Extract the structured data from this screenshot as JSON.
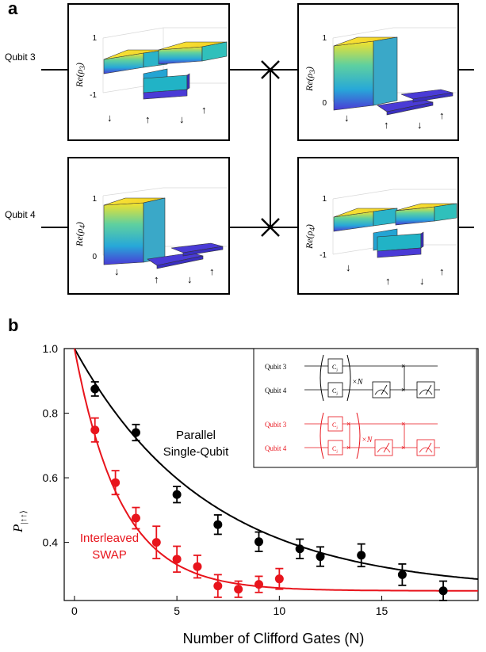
{
  "panel_a": {
    "letter": "a",
    "qubit3_label": "Qubit 3",
    "qubit4_label": "Qubit 4",
    "boxes": [
      {
        "ylabel_base": "Re(ρ",
        "ylabel_sub": "3",
        "ticks": [
          "1",
          "-1"
        ],
        "basis": [
          "↓",
          "↑",
          "↓",
          "↑"
        ]
      },
      {
        "ylabel_base": "Re(ρ",
        "ylabel_sub": "3",
        "ticks": [
          "1",
          "0"
        ],
        "basis": [
          "↓",
          "↑",
          "↓",
          "↑"
        ]
      },
      {
        "ylabel_base": "Re(ρ",
        "ylabel_sub": "4",
        "ticks": [
          "1",
          "0"
        ],
        "basis": [
          "↓",
          "↑",
          "↓",
          "↑"
        ]
      },
      {
        "ylabel_base": "Re(ρ",
        "ylabel_sub": "4",
        "ticks": [
          "1",
          "-1"
        ],
        "basis": [
          "↓",
          "↑",
          "↓",
          "↑"
        ]
      }
    ]
  },
  "panel_b": {
    "letter": "b",
    "series_label_black_1": "Parallel",
    "series_label_black_2": "Single-Qubit",
    "series_label_red_1": "Interleaved",
    "series_label_red_2": "SWAP",
    "inset": {
      "qubit3": "Qubit 3",
      "qubit4": "Qubit 4",
      "gate": "C",
      "gate_sub": "j",
      "repeat": "×N"
    }
  },
  "chart_data": {
    "type": "scatter",
    "xlabel": "Number of Clifford Gates (N)",
    "ylabel": "P",
    "ylabel_sub": "|↑↑⟩",
    "xlim": [
      -0.5,
      19.7
    ],
    "ylim": [
      0.22,
      1.0
    ],
    "x_ticks": [
      0,
      5,
      10,
      15
    ],
    "y_ticks": [
      0.4,
      0.6,
      0.8,
      1.0
    ],
    "x_tick_labels": [
      "0",
      "5",
      "10",
      "15"
    ],
    "y_tick_labels": [
      "0.4",
      "0.6",
      "0.8",
      "1.0"
    ],
    "colors": {
      "black": "#000000",
      "red": "#e8141c"
    },
    "series": [
      {
        "color": "black",
        "x": [
          1,
          3,
          5,
          7,
          9,
          11,
          12,
          14,
          16,
          18
        ],
        "y": [
          0.875,
          0.74,
          0.548,
          0.455,
          0.402,
          0.38,
          0.356,
          0.36,
          0.3,
          0.25
        ],
        "err": [
          0.022,
          0.025,
          0.025,
          0.03,
          0.03,
          0.03,
          0.03,
          0.035,
          0.033,
          0.03
        ],
        "fit": {
          "a": 0.75,
          "tau": 6.5,
          "c": 0.25
        }
      },
      {
        "color": "red",
        "x": [
          1,
          2,
          3,
          4,
          5,
          6,
          7,
          8,
          9,
          10
        ],
        "y": [
          0.748,
          0.585,
          0.475,
          0.4,
          0.348,
          0.325,
          0.265,
          0.255,
          0.27,
          0.287
        ],
        "err": [
          0.037,
          0.037,
          0.033,
          0.05,
          0.04,
          0.035,
          0.035,
          0.025,
          0.025,
          0.032
        ],
        "fit": {
          "a": 0.75,
          "tau": 2.25,
          "c": 0.25
        }
      }
    ]
  }
}
